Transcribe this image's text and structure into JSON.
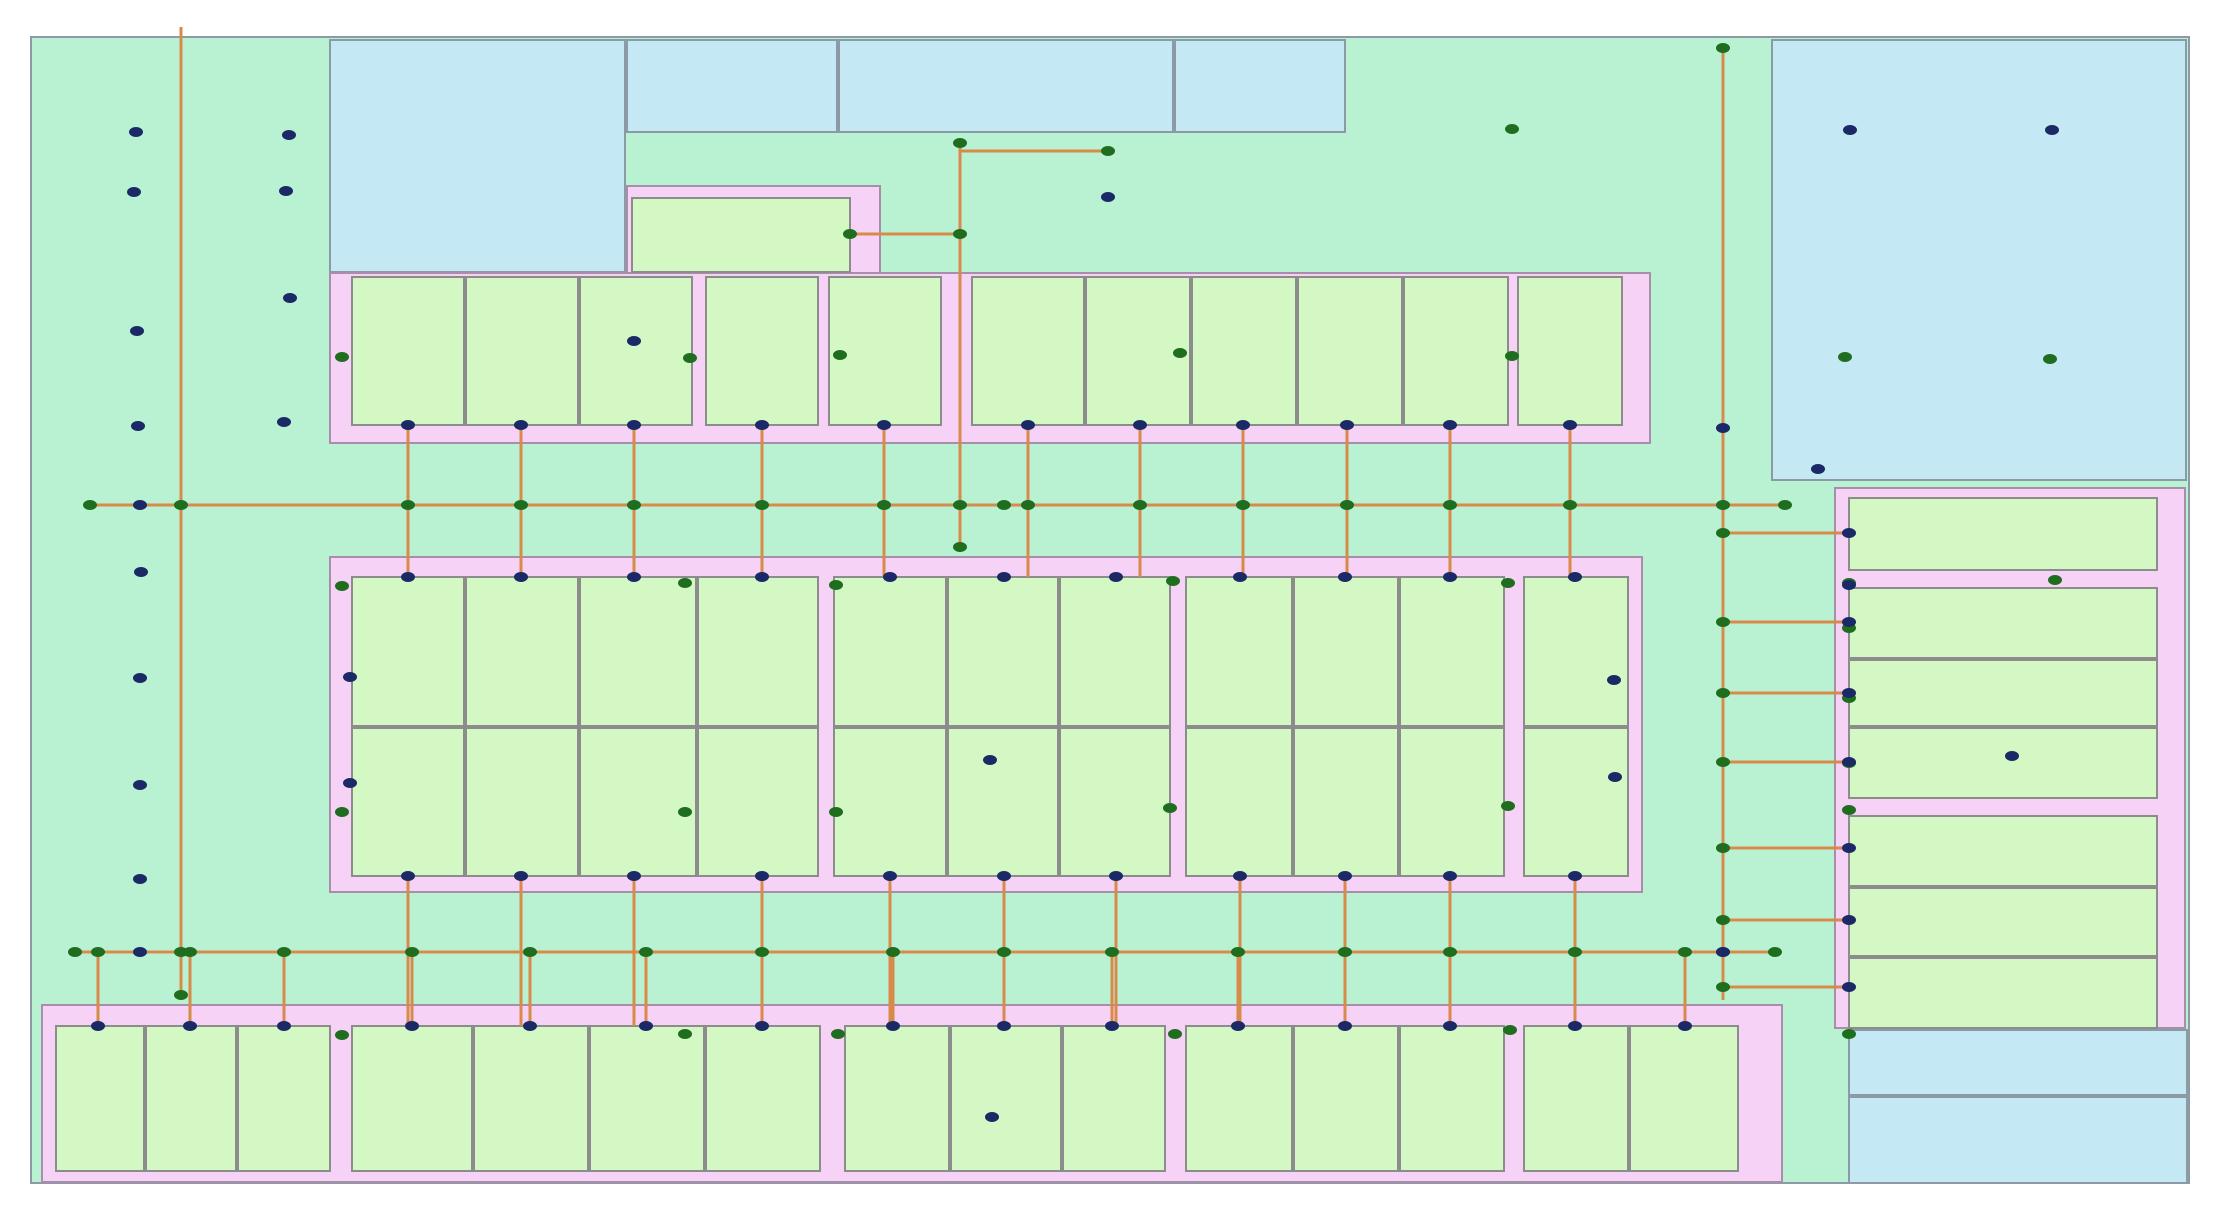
{
  "map": {
    "colors": {
      "background": "#b9f2d3",
      "open_land": "#b9f2d3",
      "water_area": "#c5e8f5",
      "parcel": "#d4f8c4",
      "buffer_band": "#f6d2f6",
      "pipeline": "#d88a4a",
      "green_node": "#1f6e1f",
      "navy_node": "#1b2a66",
      "outline": "#8c8c8c"
    },
    "layers": [
      "open-land",
      "water-area",
      "buffer-band",
      "parcel",
      "pipeline",
      "green-node",
      "navy-node"
    ]
  }
}
